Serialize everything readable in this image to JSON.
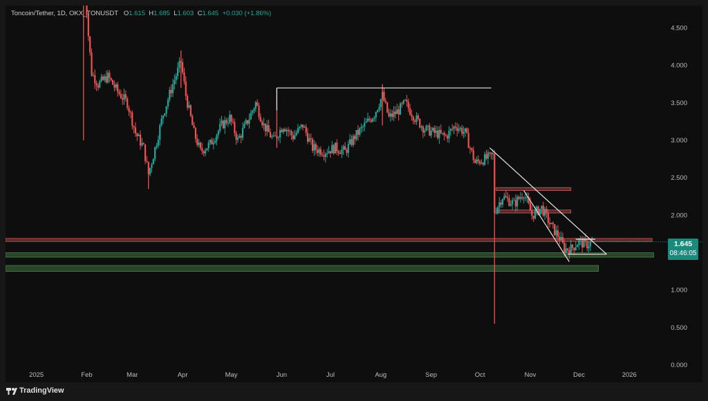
{
  "legend": {
    "symbol": "Toncoin/Tether, 1D, OKX_TONUSDT",
    "o_label": "O",
    "o_value": "1.615",
    "h_label": "H",
    "h_value": "1.685",
    "l_label": "L",
    "l_value": "1.603",
    "c_label": "C",
    "c_value": "1.645",
    "change": "+0.030 (+1.86%)"
  },
  "price_tag": {
    "price": "1.645",
    "countdown": "08:46:05"
  },
  "footer": {
    "brand": "TradingView"
  },
  "colors": {
    "up": "#26a69a",
    "down": "#ef5350",
    "background": "#0e0e0e",
    "resistance": "#e06060",
    "support": "#4c8a4c",
    "trendline": "#e8e8e8"
  },
  "chart_data": {
    "type": "candlestick",
    "y_axis": {
      "min": 0,
      "max": 4.8,
      "position": "right",
      "ticks": [
        {
          "value": 0.0,
          "label": "0.000"
        },
        {
          "value": 0.5,
          "label": "0.500"
        },
        {
          "value": 1.0,
          "label": "1.000"
        },
        {
          "value": 1.5,
          "label": "1.500"
        },
        {
          "value": 2.0,
          "label": "2.000"
        },
        {
          "value": 2.5,
          "label": "2.500"
        },
        {
          "value": 3.0,
          "label": "3.000"
        },
        {
          "value": 3.5,
          "label": "3.500"
        },
        {
          "value": 4.0,
          "label": "4.000"
        },
        {
          "value": 4.5,
          "label": "4.500"
        }
      ]
    },
    "x_axis": {
      "start": "2024-12-13",
      "end": "2026-02-15",
      "ticks": [
        {
          "date": "2024-12-01",
          "label": "Dec"
        },
        {
          "date": "2025-01-01",
          "label": "2025"
        },
        {
          "date": "2025-02-01",
          "label": "Feb"
        },
        {
          "date": "2025-03-01",
          "label": "Mar"
        },
        {
          "date": "2025-04-01",
          "label": "Apr"
        },
        {
          "date": "2025-05-01",
          "label": "May"
        },
        {
          "date": "2025-06-01",
          "label": "Jun"
        },
        {
          "date": "2025-07-01",
          "label": "Jul"
        },
        {
          "date": "2025-08-01",
          "label": "Aug"
        },
        {
          "date": "2025-09-01",
          "label": "Sep"
        },
        {
          "date": "2025-10-01",
          "label": "Oct"
        },
        {
          "date": "2025-11-01",
          "label": "Nov"
        },
        {
          "date": "2025-12-01",
          "label": "Dec"
        },
        {
          "date": "2026-01-01",
          "label": "2026"
        }
      ]
    },
    "price_path": [
      [
        "2025-01-30",
        5.4
      ],
      [
        "2025-02-02",
        4.4
      ],
      [
        "2025-02-04",
        3.9
      ],
      [
        "2025-02-08",
        3.75
      ],
      [
        "2025-02-14",
        3.85
      ],
      [
        "2025-02-20",
        3.65
      ],
      [
        "2025-02-26",
        3.5
      ],
      [
        "2025-03-03",
        3.1
      ],
      [
        "2025-03-08",
        2.9
      ],
      [
        "2025-03-11",
        2.55
      ],
      [
        "2025-03-14",
        2.8
      ],
      [
        "2025-03-20",
        3.35
      ],
      [
        "2025-03-26",
        3.75
      ],
      [
        "2025-03-31",
        4.05
      ],
      [
        "2025-04-03",
        3.6
      ],
      [
        "2025-04-08",
        3.1
      ],
      [
        "2025-04-12",
        2.85
      ],
      [
        "2025-04-18",
        2.95
      ],
      [
        "2025-04-25",
        3.2
      ],
      [
        "2025-04-30",
        3.3
      ],
      [
        "2025-05-05",
        3.0
      ],
      [
        "2025-05-12",
        3.3
      ],
      [
        "2025-05-16",
        3.5
      ],
      [
        "2025-05-21",
        3.2
      ],
      [
        "2025-05-27",
        3.0
      ],
      [
        "2025-06-02",
        3.2
      ],
      [
        "2025-06-08",
        3.05
      ],
      [
        "2025-06-14",
        3.2
      ],
      [
        "2025-06-20",
        2.9
      ],
      [
        "2025-06-27",
        2.85
      ],
      [
        "2025-07-04",
        2.9
      ],
      [
        "2025-07-10",
        2.85
      ],
      [
        "2025-07-16",
        3.05
      ],
      [
        "2025-07-22",
        3.2
      ],
      [
        "2025-07-28",
        3.35
      ],
      [
        "2025-08-02",
        3.6
      ],
      [
        "2025-08-06",
        3.3
      ],
      [
        "2025-08-12",
        3.4
      ],
      [
        "2025-08-16",
        3.5
      ],
      [
        "2025-08-22",
        3.3
      ],
      [
        "2025-08-28",
        3.15
      ],
      [
        "2025-09-03",
        3.1
      ],
      [
        "2025-09-10",
        3.05
      ],
      [
        "2025-09-16",
        3.2
      ],
      [
        "2025-09-22",
        3.1
      ],
      [
        "2025-09-28",
        2.7
      ],
      [
        "2025-10-04",
        2.75
      ],
      [
        "2025-10-09",
        2.8
      ],
      [
        "2025-10-10",
        2.05
      ],
      [
        "2025-10-15",
        2.25
      ],
      [
        "2025-10-22",
        2.15
      ],
      [
        "2025-10-28",
        2.3
      ],
      [
        "2025-11-02",
        2.0
      ],
      [
        "2025-11-08",
        2.1
      ],
      [
        "2025-11-14",
        1.85
      ],
      [
        "2025-11-19",
        1.7
      ],
      [
        "2025-11-22",
        1.55
      ],
      [
        "2025-11-26",
        1.55
      ],
      [
        "2025-12-01",
        1.65
      ],
      [
        "2025-12-05",
        1.6
      ],
      [
        "2025-12-10",
        1.645
      ]
    ],
    "wicks": [
      {
        "date": "2025-01-30",
        "high": 5.4,
        "low": 3.0
      },
      {
        "date": "2025-03-11",
        "high": 2.7,
        "low": 2.35
      },
      {
        "date": "2025-03-31",
        "high": 4.2,
        "low": 3.7
      },
      {
        "date": "2025-05-29",
        "high": 3.7,
        "low": 2.9
      },
      {
        "date": "2025-08-02",
        "high": 3.75,
        "low": 3.2
      },
      {
        "date": "2025-10-10",
        "high": 2.8,
        "low": 0.55
      }
    ],
    "horizontal_zones": [
      {
        "name": "resistance-zone-upper",
        "type": "resistance",
        "start": "2025-10-11",
        "end": "2025-11-26",
        "low": 2.33,
        "high": 2.37
      },
      {
        "name": "resistance-zone-lower",
        "type": "resistance",
        "start": "2025-10-11",
        "end": "2025-11-26",
        "low": 2.03,
        "high": 2.07
      },
      {
        "name": "resistance-zone-main",
        "type": "resistance",
        "start": "2024-12-13",
        "end": "2026-01-15",
        "low": 1.65,
        "high": 1.69
      },
      {
        "name": "support-zone-upper",
        "type": "support",
        "start": "2024-12-13",
        "end": "2026-01-16",
        "low": 1.44,
        "high": 1.5
      },
      {
        "name": "support-zone-lower",
        "type": "support",
        "start": "2024-12-13",
        "end": "2025-12-13",
        "low": 1.25,
        "high": 1.33
      }
    ],
    "trendlines": [
      {
        "name": "range-top-line",
        "points": [
          [
            "2025-05-29",
            3.7
          ],
          [
            "2025-10-08",
            3.7
          ]
        ]
      },
      {
        "name": "range-top-tick",
        "points": [
          [
            "2025-05-29",
            3.7
          ],
          [
            "2025-05-29",
            3.4
          ]
        ]
      },
      {
        "name": "channel-upper-line",
        "points": [
          [
            "2025-10-07",
            2.9
          ],
          [
            "2025-12-18",
            1.48
          ]
        ]
      },
      {
        "name": "channel-lower-line",
        "points": [
          [
            "2025-10-28",
            2.33
          ],
          [
            "2025-11-25",
            1.38
          ]
        ]
      },
      {
        "name": "channel-base-line",
        "points": [
          [
            "2025-11-24",
            1.48
          ],
          [
            "2025-12-18",
            1.48
          ]
        ]
      },
      {
        "name": "triangle-top-line",
        "points": [
          [
            "2025-11-29",
            1.68
          ],
          [
            "2025-12-11",
            1.68
          ]
        ]
      }
    ],
    "last_price": 1.645
  }
}
